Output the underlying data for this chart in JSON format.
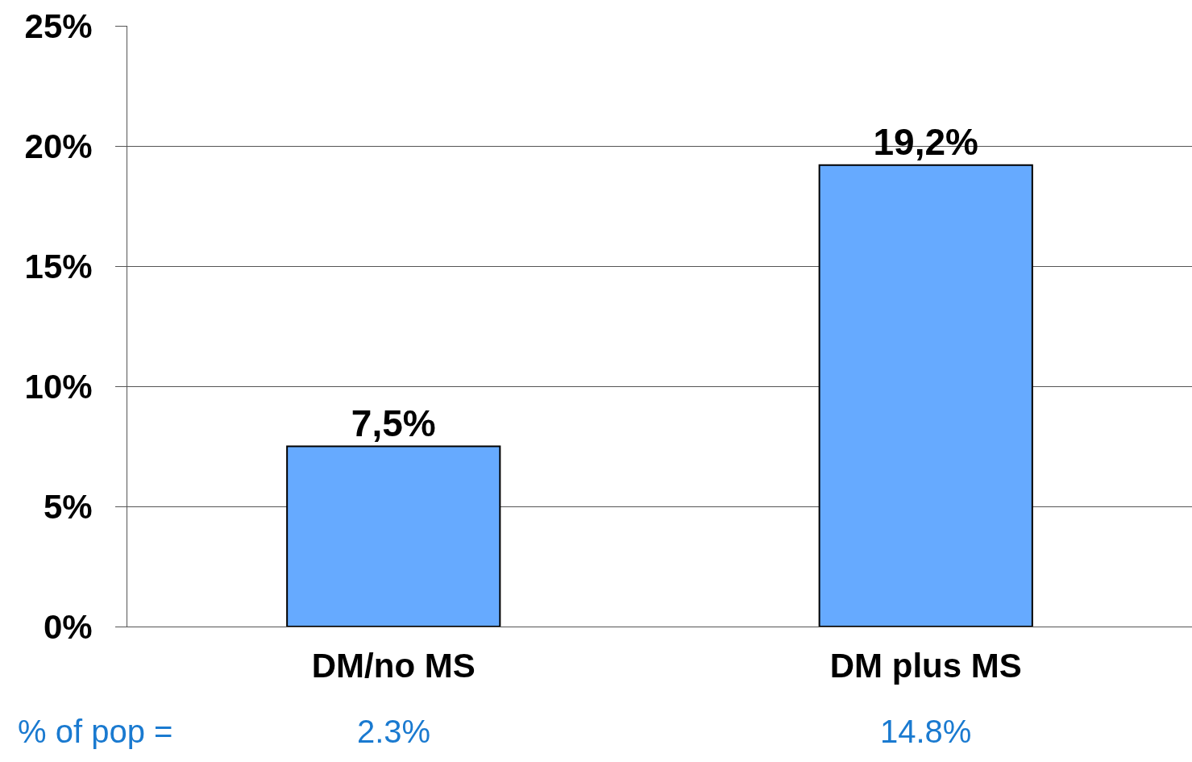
{
  "chart_data": {
    "type": "bar",
    "categories": [
      "DM/no MS",
      "DM plus MS"
    ],
    "values": [
      7.5,
      19.2
    ],
    "value_labels": [
      "7,5%",
      "19,2%"
    ],
    "color": "#66aaff",
    "ylim": [
      0,
      25
    ],
    "yticks": [
      {
        "value": 0,
        "label": "0%"
      },
      {
        "value": 5,
        "label": "5%"
      },
      {
        "value": 10,
        "label": "10%"
      },
      {
        "value": 15,
        "label": "15%"
      },
      {
        "value": 20,
        "label": "20%"
      },
      {
        "value": 25,
        "label": "25%"
      }
    ],
    "grid": "y",
    "annotations": [
      "% of pop =",
      "2.3%",
      "14.8%"
    ]
  }
}
